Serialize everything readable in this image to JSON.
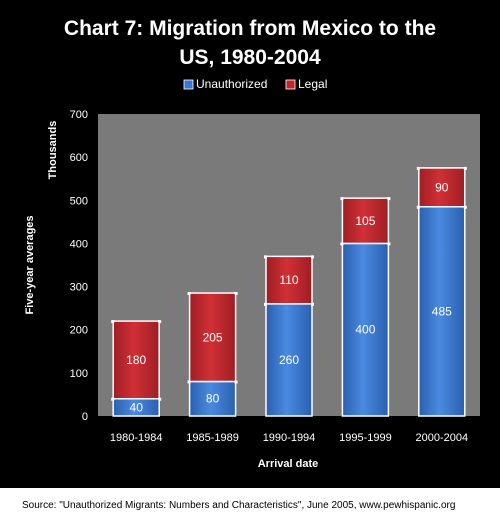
{
  "chart_data": {
    "type": "bar",
    "stacked": true,
    "title_line1": "Chart 7: Migration from Mexico to the",
    "title_line2": "US, 1980-2004",
    "ylabel_outer": "Five-year averages",
    "ylabel_inner": "Thousands",
    "xlabel": "Arrival date",
    "categories": [
      "1980-1984",
      "1985-1989",
      "1990-1994",
      "1995-1999",
      "2000-2004"
    ],
    "series": [
      {
        "name": "Unauthorized",
        "values": [
          40,
          80,
          260,
          400,
          485
        ],
        "color": "#3a78d0"
      },
      {
        "name": "Legal",
        "values": [
          180,
          205,
          110,
          105,
          90
        ],
        "color": "#c0282e"
      }
    ],
    "ylim": [
      0,
      700
    ],
    "yticks": [
      "0",
      "100",
      "200",
      "300",
      "400",
      "500",
      "600",
      "700"
    ],
    "legend_position": "top",
    "grid": false,
    "plot_background": "#7a7a7a",
    "frame_background": "#000000"
  },
  "source": "Source: \"Unauthorized Migrants: Numbers and Characteristics\",  June 2005, www.pewhispanic.org"
}
